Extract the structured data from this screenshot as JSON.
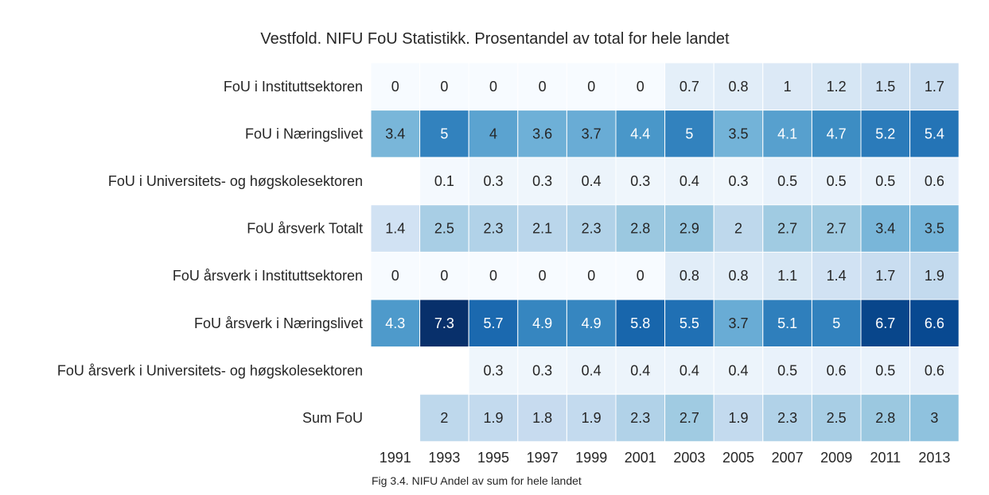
{
  "chart_data": {
    "type": "heatmap",
    "title": "Vestfold. NIFU FoU Statistikk. Prosentandel av total for hele landet",
    "caption": "Fig 3.4. NIFU Andel av sum for hele landet",
    "x": [
      "1991",
      "1993",
      "1995",
      "1997",
      "1999",
      "2001",
      "2003",
      "2005",
      "2007",
      "2009",
      "2011",
      "2013"
    ],
    "rows": [
      "FoU i Instituttsektoren",
      "FoU i Næringslivet",
      "FoU i Universitets- og høgskolesektoren",
      "FoU årsverk Totalt",
      "FoU årsverk i Instituttsektoren",
      "FoU årsverk i Næringslivet",
      "FoU årsverk i Universitets- og høgskolesektoren",
      "Sum FoU"
    ],
    "values": [
      [
        0,
        0,
        0,
        0,
        0,
        0,
        0.7,
        0.8,
        1,
        1.2,
        1.5,
        1.7
      ],
      [
        3.4,
        5,
        4,
        3.6,
        3.7,
        4.4,
        5,
        3.5,
        4.1,
        4.7,
        5.2,
        5.4
      ],
      [
        null,
        0.1,
        0.3,
        0.3,
        0.4,
        0.3,
        0.4,
        0.3,
        0.5,
        0.5,
        0.5,
        0.6
      ],
      [
        1.4,
        2.5,
        2.3,
        2.1,
        2.3,
        2.8,
        2.9,
        2,
        2.7,
        2.7,
        3.4,
        3.5
      ],
      [
        0,
        0,
        0,
        0,
        0,
        0,
        0.8,
        0.8,
        1.1,
        1.4,
        1.7,
        1.9
      ],
      [
        4.3,
        7.3,
        5.7,
        4.9,
        4.9,
        5.8,
        5.5,
        3.7,
        5.1,
        5,
        6.7,
        6.6
      ],
      [
        null,
        null,
        0.3,
        0.3,
        0.4,
        0.4,
        0.4,
        0.4,
        0.5,
        0.6,
        0.5,
        0.6
      ],
      [
        null,
        2,
        1.9,
        1.8,
        1.9,
        2.3,
        2.7,
        1.9,
        2.3,
        2.5,
        2.8,
        3
      ]
    ],
    "colormap": "Blues",
    "vmin": 0,
    "vmax": 7.3
  }
}
